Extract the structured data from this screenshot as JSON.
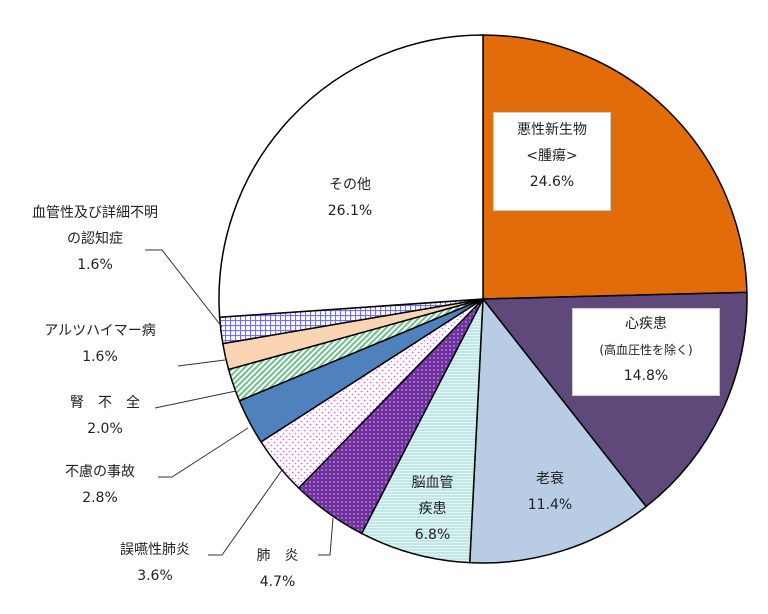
{
  "chart_data": {
    "type": "pie",
    "start": "top",
    "direction": "clockwise",
    "slices": [
      {
        "label": "悪性新生物",
        "sublabel": "<腫瘍>",
        "value": 24.6,
        "value_label": "24.6%",
        "color": "#E36C0A",
        "fill": "solid"
      },
      {
        "label": "心疾患",
        "sublabel": "(高血圧性を除く)",
        "value": 14.8,
        "value_label": "14.8%",
        "color": "#5F497A",
        "fill": "solid"
      },
      {
        "label": "老衰",
        "value": 11.4,
        "value_label": "11.4%",
        "color": "#B8CCE4",
        "fill": "solid"
      },
      {
        "label": "脳血管疾患",
        "label_lines": [
          "脳血管",
          "疾患"
        ],
        "value": 6.8,
        "value_label": "6.8%",
        "color": "#CDEDED",
        "fill": "horizontal-stripes"
      },
      {
        "label": "肺　炎",
        "value": 4.7,
        "value_label": "4.7%",
        "color": "#7030A0",
        "fill": "dots"
      },
      {
        "label": "誤嚥性肺炎",
        "value": 3.6,
        "value_label": "3.6%",
        "color": "#FF66FF",
        "fill": "sparse-dots"
      },
      {
        "label": "不慮の事故",
        "value": 2.8,
        "value_label": "2.8%",
        "color": "#4F81BD",
        "fill": "solid"
      },
      {
        "label": "腎　不　全",
        "value": 2.0,
        "value_label": "2.0%",
        "color": "#9BD3AE",
        "fill": "diagonal-stripes"
      },
      {
        "label": "アルツハイマー病",
        "value": 1.6,
        "value_label": "1.6%",
        "color": "#FBD4B4",
        "fill": "solid"
      },
      {
        "label": "血管性及び詳細不明の認知症",
        "label_lines": [
          "血管性及び詳細不明",
          "の認知症"
        ],
        "value": 1.6,
        "value_label": "1.6%",
        "color": "#8080FF",
        "fill": "grid"
      },
      {
        "label": "その他",
        "value": 26.1,
        "value_label": "26.1%",
        "color": "#FFFFFF",
        "fill": "solid"
      }
    ]
  }
}
